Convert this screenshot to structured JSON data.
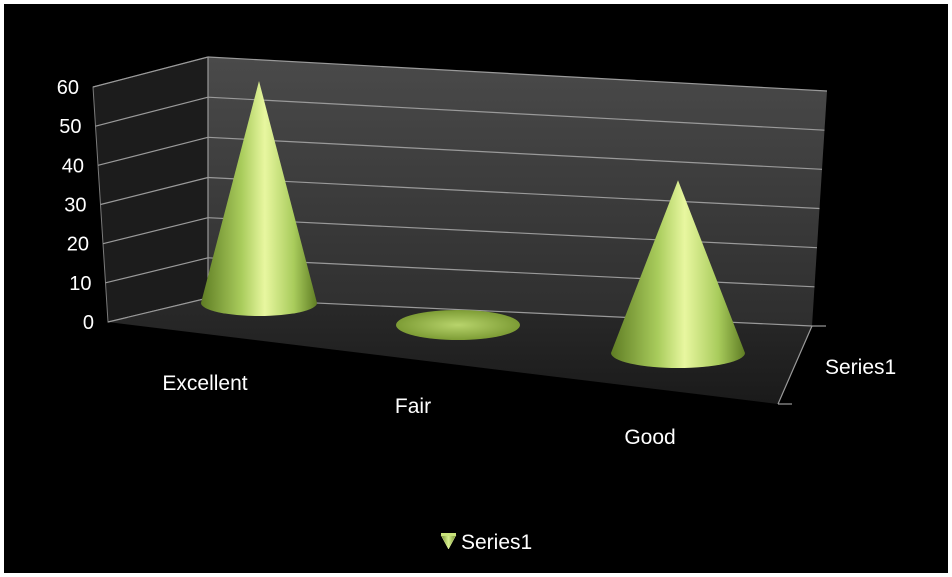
{
  "chart_data": {
    "type": "bar",
    "subtype": "3d-cone",
    "categories": [
      "Excellent",
      "Fair",
      "Good"
    ],
    "series": [
      {
        "name": "Series1",
        "values": [
          60,
          0,
          48
        ]
      }
    ],
    "ylim": [
      0,
      60
    ],
    "yticks": [
      0,
      10,
      20,
      30,
      40,
      50,
      60
    ],
    "depth_axis_label": "Series1",
    "legend": {
      "placement": "bottom",
      "entries": [
        "Series1"
      ]
    },
    "grid": true,
    "colors": {
      "background": "#000000",
      "cone_light": "#e8f7a0",
      "cone_mid": "#a9cc5c",
      "cone_dark": "#5f7d24",
      "wall": "#3a3a3a",
      "floor": "#262626",
      "gridline": "#9a9a9a"
    }
  }
}
